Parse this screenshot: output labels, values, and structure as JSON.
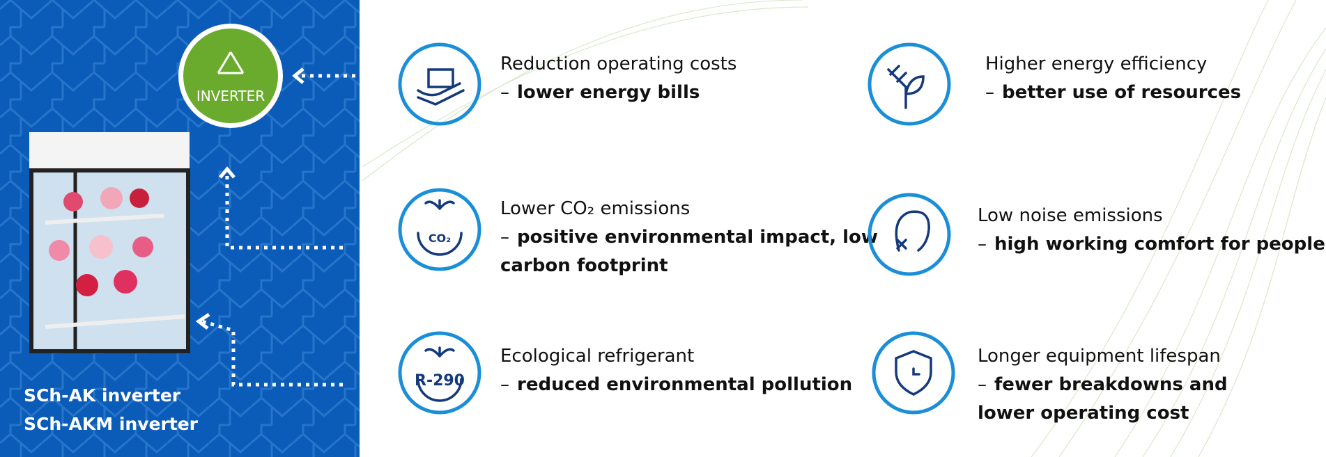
{
  "panel": {
    "badge": "INVERTER",
    "models": [
      "SCh-AK inverter",
      "SCh-AKM inverter"
    ]
  },
  "features": [
    {
      "title": "Reduction operating costs",
      "dash": "–",
      "detail": [
        "lower energy bills"
      ]
    },
    {
      "title": "Higher energy efficiency",
      "dash": "–",
      "detail": [
        "better use of resources"
      ]
    },
    {
      "title": "Lower CO₂ emissions",
      "dash": "–",
      "detail": [
        "positive environmental impact, low",
        "carbon footprint"
      ],
      "icon_label": "CO₂"
    },
    {
      "title": "Low noise emissions",
      "dash": "–",
      "detail": [
        "high working comfort for people"
      ]
    },
    {
      "title": "Ecological refrigerant",
      "dash": "–",
      "detail": [
        "reduced environmental pollution"
      ],
      "icon_label": "R-290"
    },
    {
      "title": "Longer equipment lifespan",
      "dash": "–",
      "detail": [
        "fewer breakdowns and",
        "lower operating cost"
      ]
    }
  ]
}
